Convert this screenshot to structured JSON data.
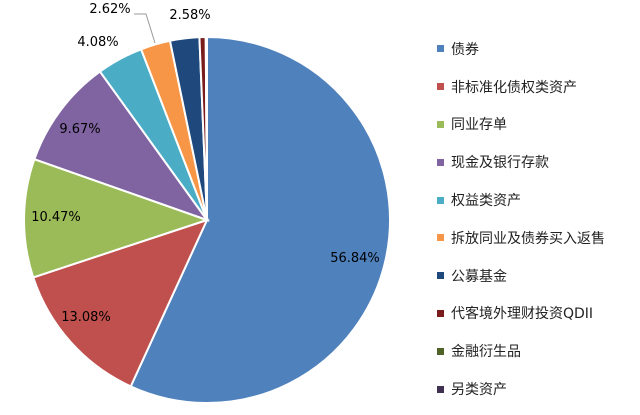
{
  "chart_data": {
    "type": "pie",
    "title": "",
    "slices": [
      {
        "name": "债券",
        "value": 56.84,
        "label": "56.84%",
        "color": "#4f81bd"
      },
      {
        "name": "非标准化债权类资产",
        "value": 13.08,
        "label": "13.08%",
        "color": "#c0504d"
      },
      {
        "name": "同业存单",
        "value": 10.47,
        "label": "10.47%",
        "color": "#9bbb59"
      },
      {
        "name": "现金及银行存款",
        "value": 9.67,
        "label": "9.67%",
        "color": "#8064a2"
      },
      {
        "name": "权益类资产",
        "value": 4.08,
        "label": "4.08%",
        "color": "#4bacc6"
      },
      {
        "name": "拆放同业及债券买入返售",
        "value": 2.62,
        "label": "2.62%",
        "color": "#f79646"
      },
      {
        "name": "公募基金",
        "value": 2.58,
        "label": "2.58%",
        "color": "#1f497d"
      },
      {
        "name": "代客境外理财投资QDII",
        "value": 0.55,
        "label": "",
        "color": "#7b1c1c"
      },
      {
        "name": "金融衍生品",
        "value": 0.0,
        "label": "",
        "color": "#4f6228"
      },
      {
        "name": "另类资产",
        "value": 0.11,
        "label": "",
        "color": "#403152"
      }
    ],
    "legend_position": "right",
    "start_direction": "12 o'clock",
    "direction": "clockwise"
  }
}
